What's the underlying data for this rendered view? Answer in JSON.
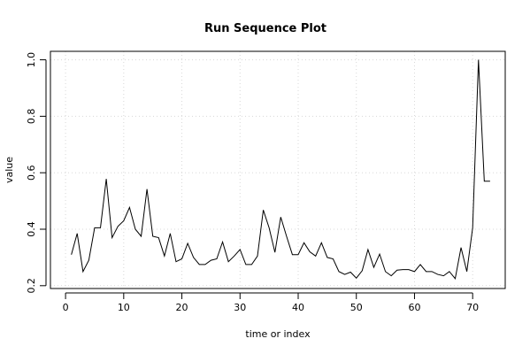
{
  "chart_data": {
    "type": "line",
    "title": "Run Sequence Plot",
    "xlabel": "time or index",
    "ylabel": "value",
    "xlim": [
      -2.6,
      75.6
    ],
    "ylim": [
      0.19,
      1.03
    ],
    "grid": true,
    "x_ticks": [
      0,
      10,
      20,
      30,
      40,
      50,
      60,
      70
    ],
    "y_ticks": [
      0.2,
      0.4,
      0.6,
      0.8,
      1.0
    ],
    "y_tick_labels": [
      "0.2",
      "0.4",
      "0.6",
      "0.8",
      "1.0"
    ],
    "x": [
      1,
      2,
      3,
      4,
      5,
      6,
      7,
      8,
      9,
      10,
      11,
      12,
      13,
      14,
      15,
      16,
      17,
      18,
      19,
      20,
      21,
      22,
      23,
      24,
      25,
      26,
      27,
      28,
      29,
      30,
      31,
      32,
      33,
      34,
      35,
      36,
      37,
      38,
      39,
      40,
      41,
      42,
      43,
      44,
      45,
      46,
      47,
      48,
      49,
      50,
      51,
      52,
      53,
      54,
      55,
      56,
      57,
      58,
      59,
      60,
      61,
      62,
      63,
      64,
      65,
      66,
      67,
      68,
      69,
      70,
      71,
      72,
      73
    ],
    "series": [
      {
        "values": [
          0.31,
          0.385,
          0.25,
          0.29,
          0.405,
          0.405,
          0.578,
          0.37,
          0.41,
          0.43,
          0.477,
          0.4,
          0.375,
          0.542,
          0.375,
          0.37,
          0.305,
          0.385,
          0.285,
          0.295,
          0.35,
          0.3,
          0.275,
          0.275,
          0.29,
          0.295,
          0.355,
          0.285,
          0.305,
          0.328,
          0.275,
          0.275,
          0.305,
          0.468,
          0.405,
          0.318,
          0.443,
          0.375,
          0.31,
          0.31,
          0.352,
          0.32,
          0.305,
          0.352,
          0.3,
          0.295,
          0.25,
          0.24,
          0.248,
          0.227,
          0.253,
          0.328,
          0.265,
          0.312,
          0.25,
          0.235,
          0.255,
          0.257,
          0.257,
          0.25,
          0.275,
          0.25,
          0.25,
          0.24,
          0.235,
          0.25,
          0.225,
          0.335,
          0.25,
          0.405,
          1.0,
          0.57,
          0.57
        ]
      }
    ]
  }
}
